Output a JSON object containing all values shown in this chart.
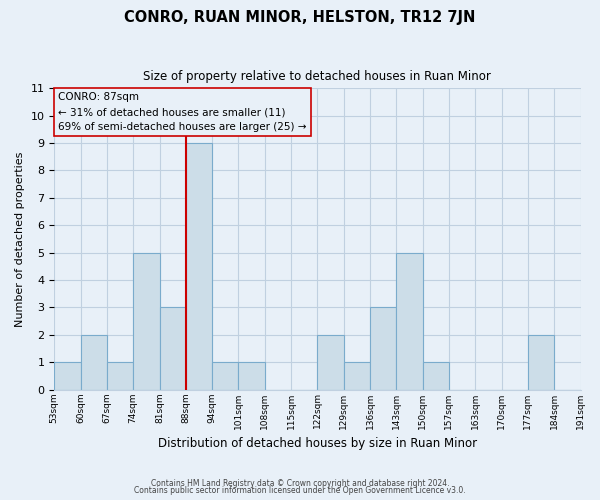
{
  "title": "CONRO, RUAN MINOR, HELSTON, TR12 7JN",
  "subtitle": "Size of property relative to detached houses in Ruan Minor",
  "xlabel": "Distribution of detached houses by size in Ruan Minor",
  "ylabel": "Number of detached properties",
  "footer_lines": [
    "Contains HM Land Registry data © Crown copyright and database right 2024.",
    "Contains public sector information licensed under the Open Government Licence v3.0."
  ],
  "bin_labels": [
    "53sqm",
    "60sqm",
    "67sqm",
    "74sqm",
    "81sqm",
    "88sqm",
    "94sqm",
    "101sqm",
    "108sqm",
    "115sqm",
    "122sqm",
    "129sqm",
    "136sqm",
    "143sqm",
    "150sqm",
    "157sqm",
    "163sqm",
    "170sqm",
    "177sqm",
    "184sqm",
    "191sqm"
  ],
  "counts": [
    1,
    2,
    1,
    5,
    3,
    9,
    1,
    1,
    0,
    0,
    2,
    1,
    3,
    5,
    1,
    0,
    0,
    0,
    2,
    0
  ],
  "bar_color": "#ccdde8",
  "bar_edge_color": "#7aabcc",
  "grid_color": "#c0d0e0",
  "background_color": "#e8f0f8",
  "marker_bin_index": 5,
  "marker_line_color": "#cc0000",
  "annotation_line1": "CONRO: 87sqm",
  "annotation_line2": "← 31% of detached houses are smaller (11)",
  "annotation_line3": "69% of semi-detached houses are larger (25) →",
  "ylim": [
    0,
    11
  ],
  "yticks": [
    0,
    1,
    2,
    3,
    4,
    5,
    6,
    7,
    8,
    9,
    10,
    11
  ]
}
